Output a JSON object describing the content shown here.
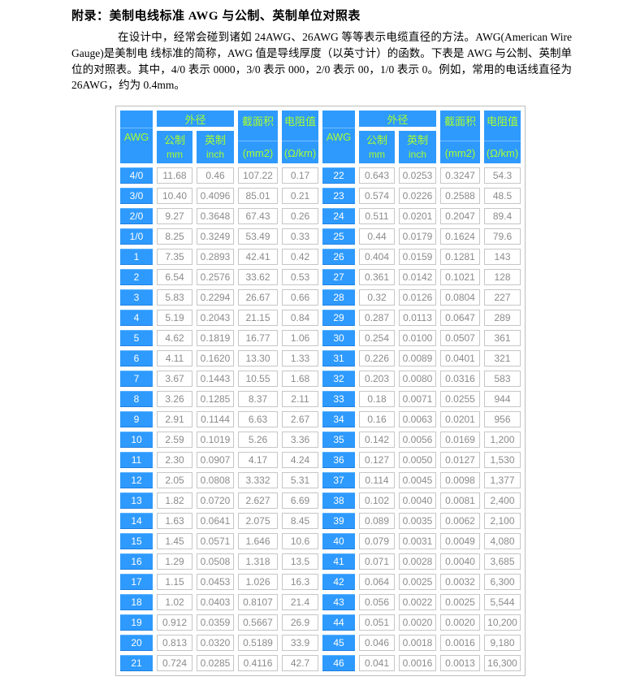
{
  "document": {
    "title": "附录：美制电线标准 AWG 与公制、英制单位对照表",
    "paragraph": "在设计中，经常会碰到诸如 24AWG、26AWG 等等表示电缆直径的方法。AWG(American Wire Gauge)是美制电 线标准的简称，AWG 值是导线厚度（以英寸计）的函数。下表是 AWG 与公制、英制单位的对照表。其中，4/0 表示 0000，3/0 表示 000，2/0 表示 00，1/0 表示 0。例如，常用的电话线直径为 26AWG，约为 0.4mm。"
  },
  "table": {
    "header": {
      "awg": "AWG",
      "outer_diameter": "外径",
      "metric": "公制",
      "metric_unit": "mm",
      "imperial": "英制",
      "imperial_unit": "inch",
      "cross_section": "截面积",
      "cross_section_unit": "(mm2)",
      "resistance": "电阻值",
      "resistance_unit": "(Ω/km)"
    },
    "rows_left": [
      [
        "4/0",
        "11.68",
        "0.46",
        "107.22",
        "0.17"
      ],
      [
        "3/0",
        "10.40",
        "0.4096",
        "85.01",
        "0.21"
      ],
      [
        "2/0",
        "9.27",
        "0.3648",
        "67.43",
        "0.26"
      ],
      [
        "1/0",
        "8.25",
        "0.3249",
        "53.49",
        "0.33"
      ],
      [
        "1",
        "7.35",
        "0.2893",
        "42.41",
        "0.42"
      ],
      [
        "2",
        "6.54",
        "0.2576",
        "33.62",
        "0.53"
      ],
      [
        "3",
        "5.83",
        "0.2294",
        "26.67",
        "0.66"
      ],
      [
        "4",
        "5.19",
        "0.2043",
        "21.15",
        "0.84"
      ],
      [
        "5",
        "4.62",
        "0.1819",
        "16.77",
        "1.06"
      ],
      [
        "6",
        "4.11",
        "0.1620",
        "13.30",
        "1.33"
      ],
      [
        "7",
        "3.67",
        "0.1443",
        "10.55",
        "1.68"
      ],
      [
        "8",
        "3.26",
        "0.1285",
        "8.37",
        "2.11"
      ],
      [
        "9",
        "2.91",
        "0.1144",
        "6.63",
        "2.67"
      ],
      [
        "10",
        "2.59",
        "0.1019",
        "5.26",
        "3.36"
      ],
      [
        "11",
        "2.30",
        "0.0907",
        "4.17",
        "4.24"
      ],
      [
        "12",
        "2.05",
        "0.0808",
        "3.332",
        "5.31"
      ],
      [
        "13",
        "1.82",
        "0.0720",
        "2.627",
        "6.69"
      ],
      [
        "14",
        "1.63",
        "0.0641",
        "2.075",
        "8.45"
      ],
      [
        "15",
        "1.45",
        "0.0571",
        "1.646",
        "10.6"
      ],
      [
        "16",
        "1.29",
        "0.0508",
        "1.318",
        "13.5"
      ],
      [
        "17",
        "1.15",
        "0.0453",
        "1.026",
        "16.3"
      ],
      [
        "18",
        "1.02",
        "0.0403",
        "0.8107",
        "21.4"
      ],
      [
        "19",
        "0.912",
        "0.0359",
        "0.5667",
        "26.9"
      ],
      [
        "20",
        "0.813",
        "0.0320",
        "0.5189",
        "33.9"
      ],
      [
        "21",
        "0.724",
        "0.0285",
        "0.4116",
        "42.7"
      ]
    ],
    "rows_right": [
      [
        "22",
        "0.643",
        "0.0253",
        "0.3247",
        "54.3"
      ],
      [
        "23",
        "0.574",
        "0.0226",
        "0.2588",
        "48.5"
      ],
      [
        "24",
        "0.511",
        "0.0201",
        "0.2047",
        "89.4"
      ],
      [
        "25",
        "0.44",
        "0.0179",
        "0.1624",
        "79.6"
      ],
      [
        "26",
        "0.404",
        "0.0159",
        "0.1281",
        "143"
      ],
      [
        "27",
        "0.361",
        "0.0142",
        "0.1021",
        "128"
      ],
      [
        "28",
        "0.32",
        "0.0126",
        "0.0804",
        "227"
      ],
      [
        "29",
        "0.287",
        "0.0113",
        "0.0647",
        "289"
      ],
      [
        "30",
        "0.254",
        "0.0100",
        "0.0507",
        "361"
      ],
      [
        "31",
        "0.226",
        "0.0089",
        "0.0401",
        "321"
      ],
      [
        "32",
        "0.203",
        "0.0080",
        "0.0316",
        "583"
      ],
      [
        "33",
        "0.18",
        "0.0071",
        "0.0255",
        "944"
      ],
      [
        "34",
        "0.16",
        "0.0063",
        "0.0201",
        "956"
      ],
      [
        "35",
        "0.142",
        "0.0056",
        "0.0169",
        "1,200"
      ],
      [
        "36",
        "0.127",
        "0.0050",
        "0.0127",
        "1,530"
      ],
      [
        "37",
        "0.114",
        "0.0045",
        "0.0098",
        "1,377"
      ],
      [
        "38",
        "0.102",
        "0.0040",
        "0.0081",
        "2,400"
      ],
      [
        "39",
        "0.089",
        "0.0035",
        "0.0062",
        "2,100"
      ],
      [
        "40",
        "0.079",
        "0.0031",
        "0.0049",
        "4,080"
      ],
      [
        "41",
        "0.071",
        "0.0028",
        "0.0040",
        "3,685"
      ],
      [
        "42",
        "0.064",
        "0.0025",
        "0.0032",
        "6,300"
      ],
      [
        "43",
        "0.056",
        "0.0022",
        "0.0025",
        "5,544"
      ],
      [
        "44",
        "0.051",
        "0.0020",
        "0.0020",
        "10,200"
      ],
      [
        "45",
        "0.046",
        "0.0018",
        "0.0016",
        "9,180"
      ],
      [
        "46",
        "0.041",
        "0.0016",
        "0.0013",
        "16,300"
      ]
    ]
  },
  "colors": {
    "header_bg": "#2E9AFE",
    "header_text": "#A6FF2E",
    "awg_text": "#FFFFFF",
    "cell_text": "#8B8B8B",
    "cell_border": "#C6C6C6"
  }
}
